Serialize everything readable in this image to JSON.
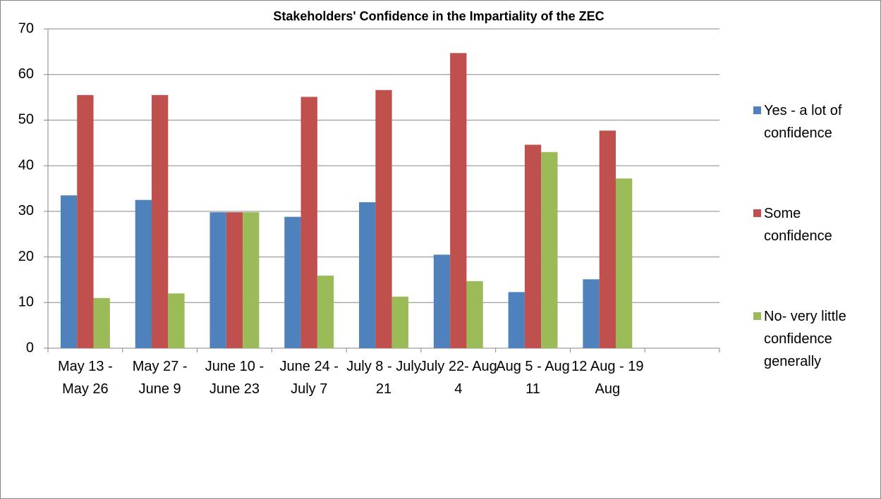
{
  "chart_data": {
    "type": "bar",
    "title": "Stakeholders' Confidence in the Impartiality of the ZEC",
    "categories": [
      "May 13 - May 26",
      "May 27 - June 9",
      "June 10 - June 23",
      "June 24 - July 7",
      "July 8 - July 21",
      "July 22- Aug 4",
      "Aug 5 - Aug 11",
      "12 Aug - 19 Aug",
      null
    ],
    "series": [
      {
        "name": "Yes - a lot of confidence",
        "color": "#4f81bd",
        "values": [
          33.5,
          32.5,
          29.8,
          28.8,
          32,
          20.5,
          12.3,
          15.1,
          null
        ]
      },
      {
        "name": "Some confidence",
        "color": "#c0504d",
        "values": [
          55.5,
          55.5,
          29.8,
          55.1,
          56.6,
          64.7,
          44.6,
          47.7,
          null
        ]
      },
      {
        "name": "No- very little confidence generally",
        "color": "#9bbb59",
        "values": [
          11,
          12,
          29.8,
          15.9,
          11.3,
          14.7,
          43,
          37.2,
          null
        ]
      }
    ],
    "ylim": [
      0,
      70
    ],
    "yticks": [
      0,
      10,
      20,
      30,
      40,
      50,
      60,
      70
    ],
    "grid": true,
    "legend": "right"
  }
}
